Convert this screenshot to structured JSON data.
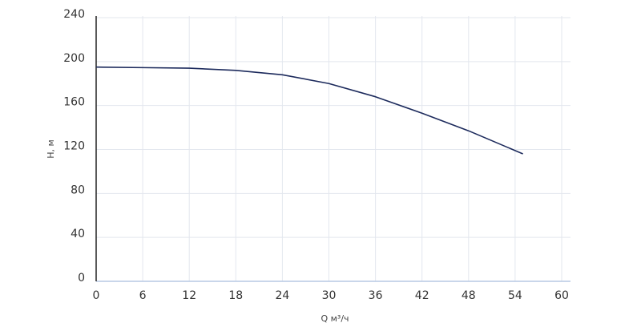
{
  "chart_data": {
    "type": "line",
    "x_label": "Q м³/ч",
    "y_label": "H, м",
    "series": [
      {
        "name": "H",
        "color": "#1c2a5c",
        "x": [
          0,
          6,
          12,
          18,
          24,
          30,
          36,
          42,
          48,
          55
        ],
        "values": [
          195,
          194.5,
          194,
          192,
          188,
          180,
          168,
          153,
          137,
          116
        ]
      }
    ],
    "xlim": [
      0,
      60
    ],
    "xticks": [
      0,
      6,
      12,
      18,
      24,
      30,
      36,
      42,
      48,
      54,
      60
    ],
    "ylim": [
      0,
      240
    ],
    "yticks": [
      0,
      40,
      80,
      120,
      160,
      200,
      240
    ],
    "grid": true
  }
}
